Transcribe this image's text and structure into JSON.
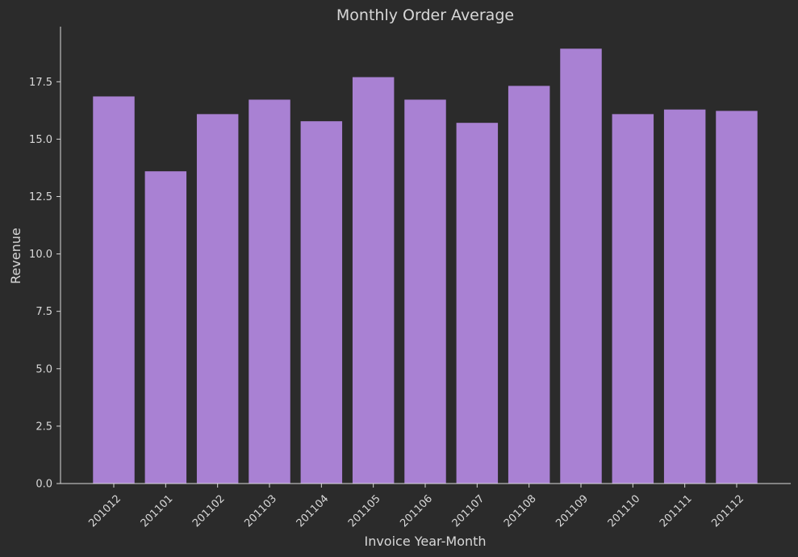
{
  "chart_data": {
    "type": "bar",
    "title": "Monthly Order Average",
    "xlabel": "Invoice Year-Month",
    "ylabel": "Revenue",
    "categories": [
      "201012",
      "201101",
      "201102",
      "201103",
      "201104",
      "201105",
      "201106",
      "201107",
      "201108",
      "201109",
      "201110",
      "201111",
      "201112"
    ],
    "values": [
      16.86,
      13.6,
      16.09,
      16.72,
      15.78,
      17.7,
      16.72,
      15.71,
      17.32,
      18.94,
      16.09,
      16.29,
      16.23
    ],
    "ylim": [
      0,
      19.9
    ],
    "yticks": [
      0.0,
      2.5,
      5.0,
      7.5,
      10.0,
      12.5,
      15.0,
      17.5
    ],
    "ytick_labels": [
      "0.0",
      "2.5",
      "5.0",
      "7.5",
      "10.0",
      "12.5",
      "15.0",
      "17.5"
    ],
    "grid": false,
    "legend": "none",
    "colors": {
      "background": "#2b2b2b",
      "bar": "#a981d3",
      "axis": "#d8d8d8",
      "text": "#d8d8d8"
    }
  }
}
